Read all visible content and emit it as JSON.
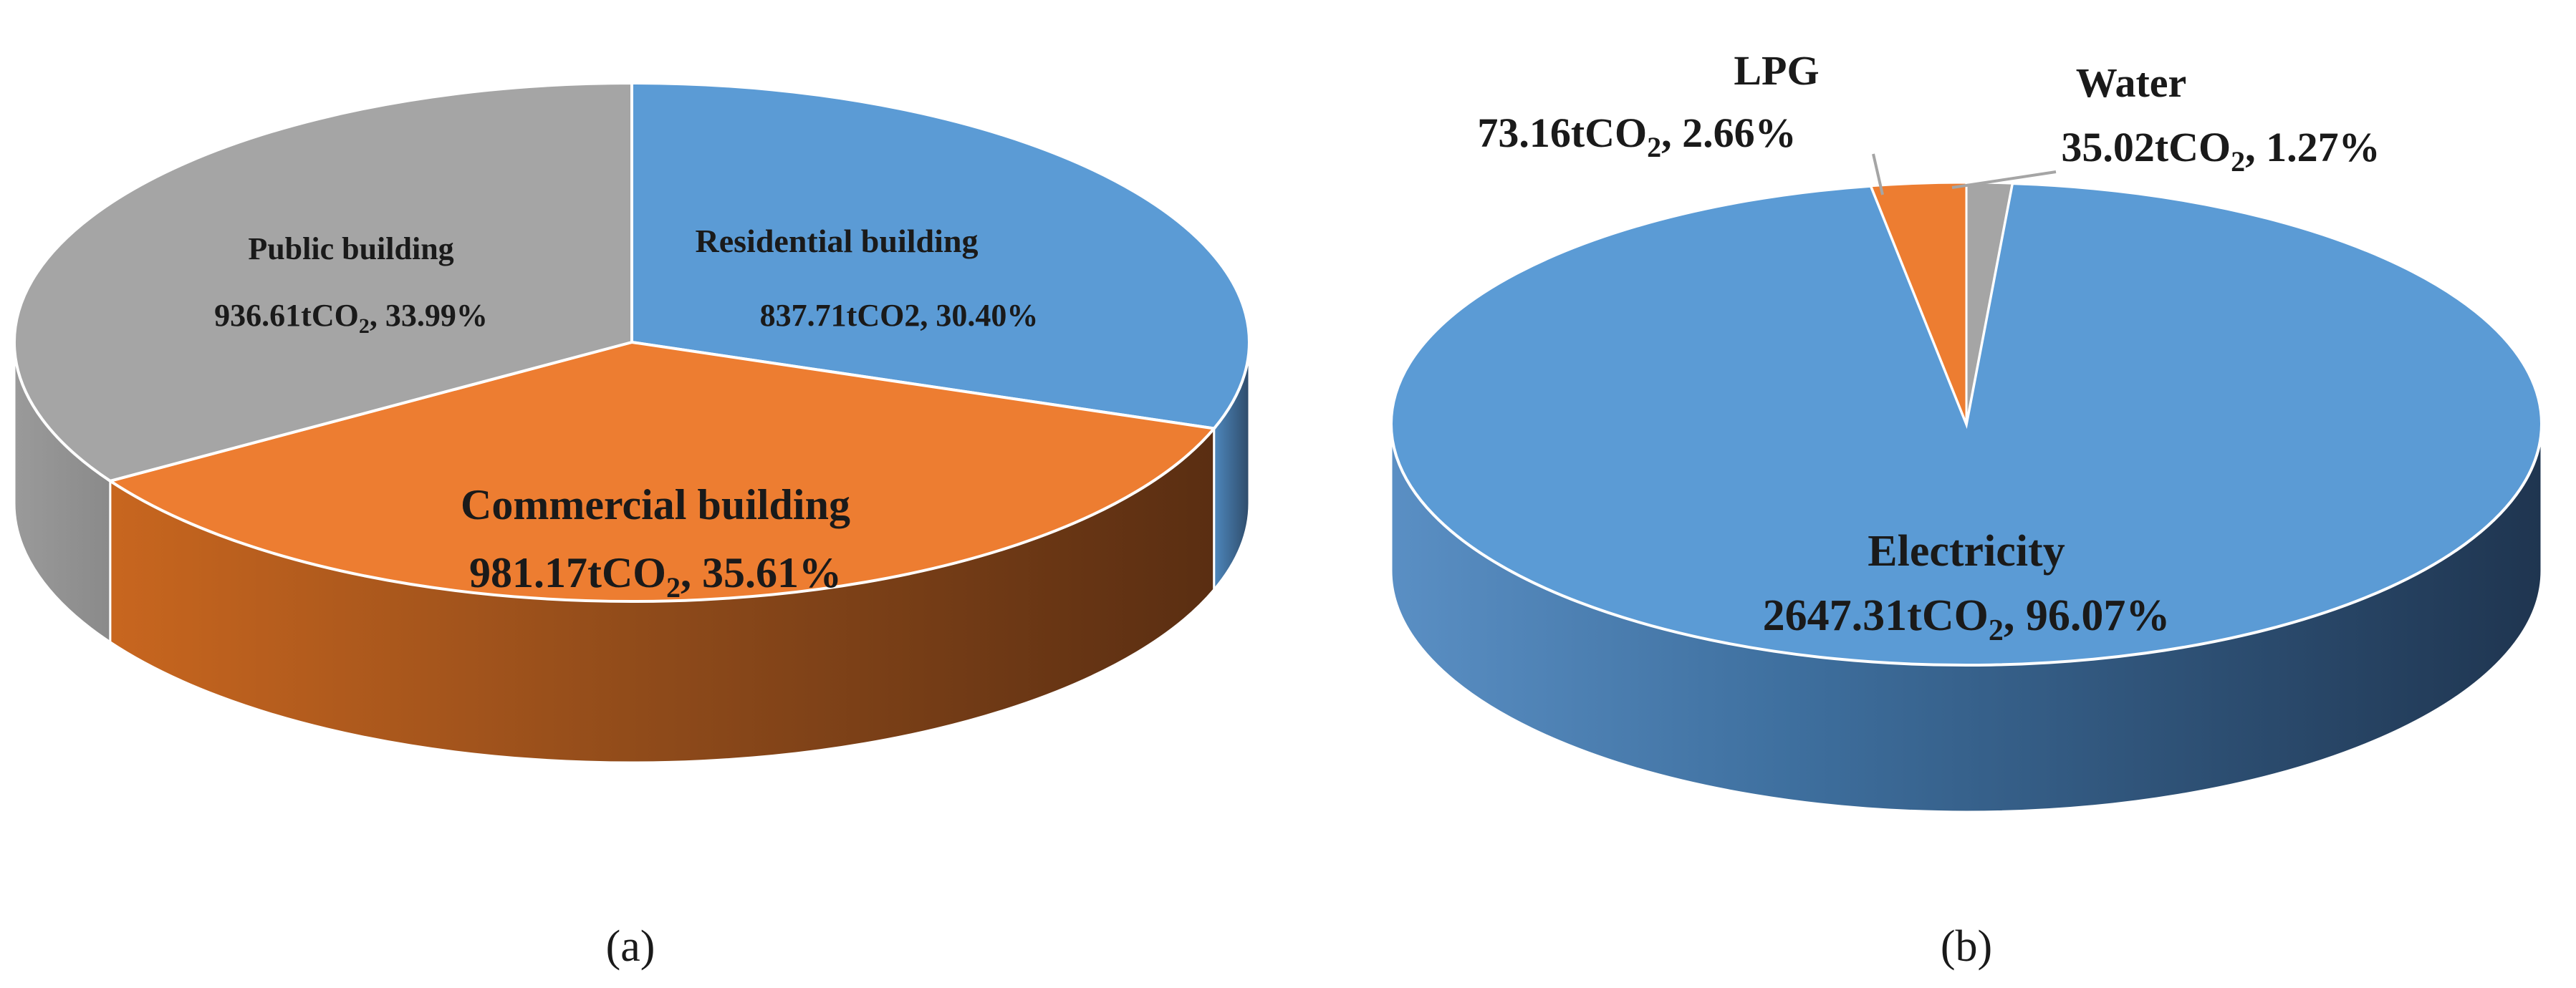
{
  "chart_data": [
    {
      "type": "pie",
      "style": "3d-pie",
      "caption": "(a)",
      "slices": [
        {
          "id": "residential",
          "name": "Residential building",
          "value": 837.71,
          "percent": 30.4,
          "value_label": "837.71tCO2, 30.40%",
          "color": "#5B9BD5",
          "side_color": "#3A6E9E"
        },
        {
          "id": "commercial",
          "name": "Commercial building",
          "value": 981.17,
          "percent": 35.61,
          "value_prefix": "981.17tCO",
          "value_sub": "2",
          "value_suffix": ", 35.61%",
          "color": "#ED7D31",
          "side_color": "#B0551C"
        },
        {
          "id": "public",
          "name": "Public building",
          "value": 936.61,
          "percent": 33.99,
          "value_prefix": "936.61tCO",
          "value_sub": "2",
          "value_suffix": ", 33.99%",
          "color": "#A5A5A5",
          "side_color": "#7A7A7A"
        }
      ]
    },
    {
      "type": "pie",
      "style": "3d-pie",
      "caption": "(b)",
      "slices": [
        {
          "id": "electricity",
          "name": "Electricity",
          "value": 2647.31,
          "percent": 96.07,
          "value_prefix": "2647.31tCO",
          "value_sub": "2",
          "value_suffix": ", 96.07%",
          "color": "#5B9BD5",
          "side_color": "#3A6E9E"
        },
        {
          "id": "lpg",
          "name": "LPG",
          "value": 73.16,
          "percent": 2.66,
          "value_prefix": "73.16tCO",
          "value_sub": "2",
          "value_suffix": ", 2.66%",
          "color": "#ED7D31",
          "side_color": "#B0551C"
        },
        {
          "id": "water",
          "name": "Water",
          "value": 35.02,
          "percent": 1.27,
          "value_prefix": "35.02tCO",
          "value_sub": "2",
          "value_suffix": ", 1.27%",
          "color": "#A5A5A5",
          "side_color": "#7A7A7A"
        }
      ]
    }
  ]
}
